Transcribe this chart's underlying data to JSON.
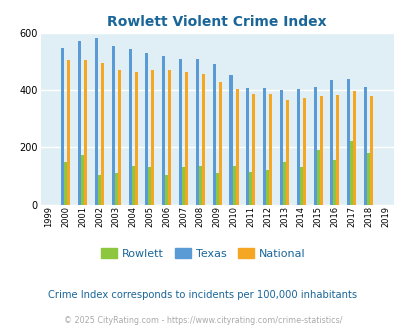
{
  "title": "Rowlett Violent Crime Index",
  "years": [
    1999,
    2000,
    2001,
    2002,
    2003,
    2004,
    2005,
    2006,
    2007,
    2008,
    2009,
    2010,
    2011,
    2012,
    2013,
    2014,
    2015,
    2016,
    2017,
    2018,
    2019
  ],
  "rowlett": [
    0,
    148,
    172,
    103,
    112,
    135,
    130,
    105,
    130,
    135,
    110,
    135,
    113,
    122,
    148,
    130,
    192,
    155,
    222,
    180,
    0
  ],
  "texas": [
    0,
    548,
    572,
    582,
    556,
    545,
    530,
    518,
    508,
    510,
    492,
    453,
    408,
    408,
    402,
    403,
    410,
    435,
    440,
    410,
    0
  ],
  "national": [
    0,
    505,
    504,
    495,
    472,
    463,
    470,
    470,
    465,
    456,
    428,
    404,
    387,
    387,
    367,
    374,
    378,
    383,
    398,
    380,
    0
  ],
  "rowlett_color": "#8dc63f",
  "texas_color": "#5b9bd5",
  "national_color": "#f5a623",
  "bg_color": "#e0eff5",
  "title_color": "#1a6699",
  "subtitle_text": "Crime Index corresponds to incidents per 100,000 inhabitants",
  "subtitle_color": "#1a6699",
  "footer_text": "© 2025 CityRating.com - https://www.cityrating.com/crime-statistics/",
  "footer_color": "#aaaaaa",
  "ylim": [
    0,
    600
  ],
  "yticks": [
    0,
    200,
    400,
    600
  ],
  "bar_width": 0.18,
  "grid_color": "#ffffff"
}
